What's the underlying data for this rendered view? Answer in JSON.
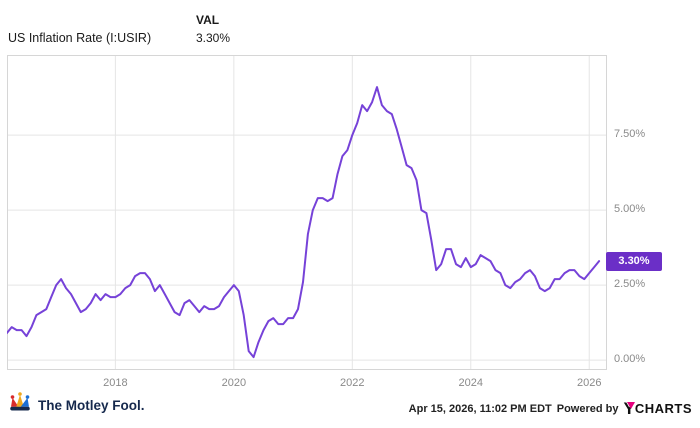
{
  "header": {
    "title": "US Inflation Rate (I:USIR)",
    "val_label": "VAL",
    "val_value": "3.30%"
  },
  "badge": {
    "label": "3.30%"
  },
  "footer": {
    "brand": "The Motley Fool.",
    "date": "Apr 15, 2026, 11:02 PM EDT",
    "powered_by": "Powered by",
    "ycharts_y": "Y",
    "ycharts_rest": "CHARTS"
  },
  "colors": {
    "line": "#7642d8",
    "badge_bg": "#6b2fc7",
    "grid": "#e5e5e5",
    "plot_border": "#d6d6d6",
    "tick_text": "#8a8a8a"
  },
  "chart_data": {
    "type": "line",
    "title": "US Inflation Rate (I:USIR)",
    "series_name": "US Inflation Rate",
    "frequency": "monthly",
    "x_start": "2016-03",
    "x_start_year": 2016.1667,
    "x_step_years": 0.0833333,
    "values": [
      0.9,
      1.1,
      1.0,
      1.0,
      0.8,
      1.1,
      1.5,
      1.6,
      1.7,
      2.1,
      2.5,
      2.7,
      2.4,
      2.2,
      1.9,
      1.6,
      1.7,
      1.9,
      2.2,
      2.0,
      2.2,
      2.1,
      2.1,
      2.2,
      2.4,
      2.5,
      2.8,
      2.9,
      2.9,
      2.7,
      2.3,
      2.5,
      2.2,
      1.9,
      1.6,
      1.5,
      1.9,
      2.0,
      1.8,
      1.6,
      1.8,
      1.7,
      1.7,
      1.8,
      2.1,
      2.3,
      2.5,
      2.3,
      1.5,
      0.3,
      0.1,
      0.6,
      1.0,
      1.3,
      1.4,
      1.2,
      1.2,
      1.4,
      1.4,
      1.7,
      2.6,
      4.2,
      5.0,
      5.4,
      5.4,
      5.3,
      5.4,
      6.2,
      6.8,
      7.0,
      7.5,
      7.9,
      8.5,
      8.3,
      8.6,
      9.1,
      8.5,
      8.3,
      8.2,
      7.7,
      7.1,
      6.5,
      6.4,
      6.0,
      5.0,
      4.9,
      4.0,
      3.0,
      3.2,
      3.7,
      3.7,
      3.2,
      3.1,
      3.4,
      3.1,
      3.2,
      3.5,
      3.4,
      3.3,
      3.0,
      2.9,
      2.5,
      2.4,
      2.6,
      2.7,
      2.9,
      3.0,
      2.8,
      2.4,
      2.3,
      2.4,
      2.7,
      2.7,
      2.9,
      3.0,
      3.0,
      2.8,
      2.7,
      2.9,
      3.1,
      3.3
    ],
    "last_value": 3.3,
    "last_value_label": "3.30%",
    "xlim": [
      2016.17,
      2026.3
    ],
    "ylim": [
      -0.33,
      10.17
    ],
    "x_ticks": [
      {
        "value": 2018,
        "label": "2018"
      },
      {
        "value": 2020,
        "label": "2020"
      },
      {
        "value": 2022,
        "label": "2022"
      },
      {
        "value": 2024,
        "label": "2024"
      },
      {
        "value": 2026,
        "label": "2026"
      }
    ],
    "y_ticks": [
      {
        "value": 0.0,
        "label": "0.00%"
      },
      {
        "value": 2.5,
        "label": "2.50%"
      },
      {
        "value": 5.0,
        "label": "5.00%"
      },
      {
        "value": 7.5,
        "label": "7.50%"
      }
    ],
    "grid": true,
    "legend": false,
    "y_axis_side": "right"
  }
}
